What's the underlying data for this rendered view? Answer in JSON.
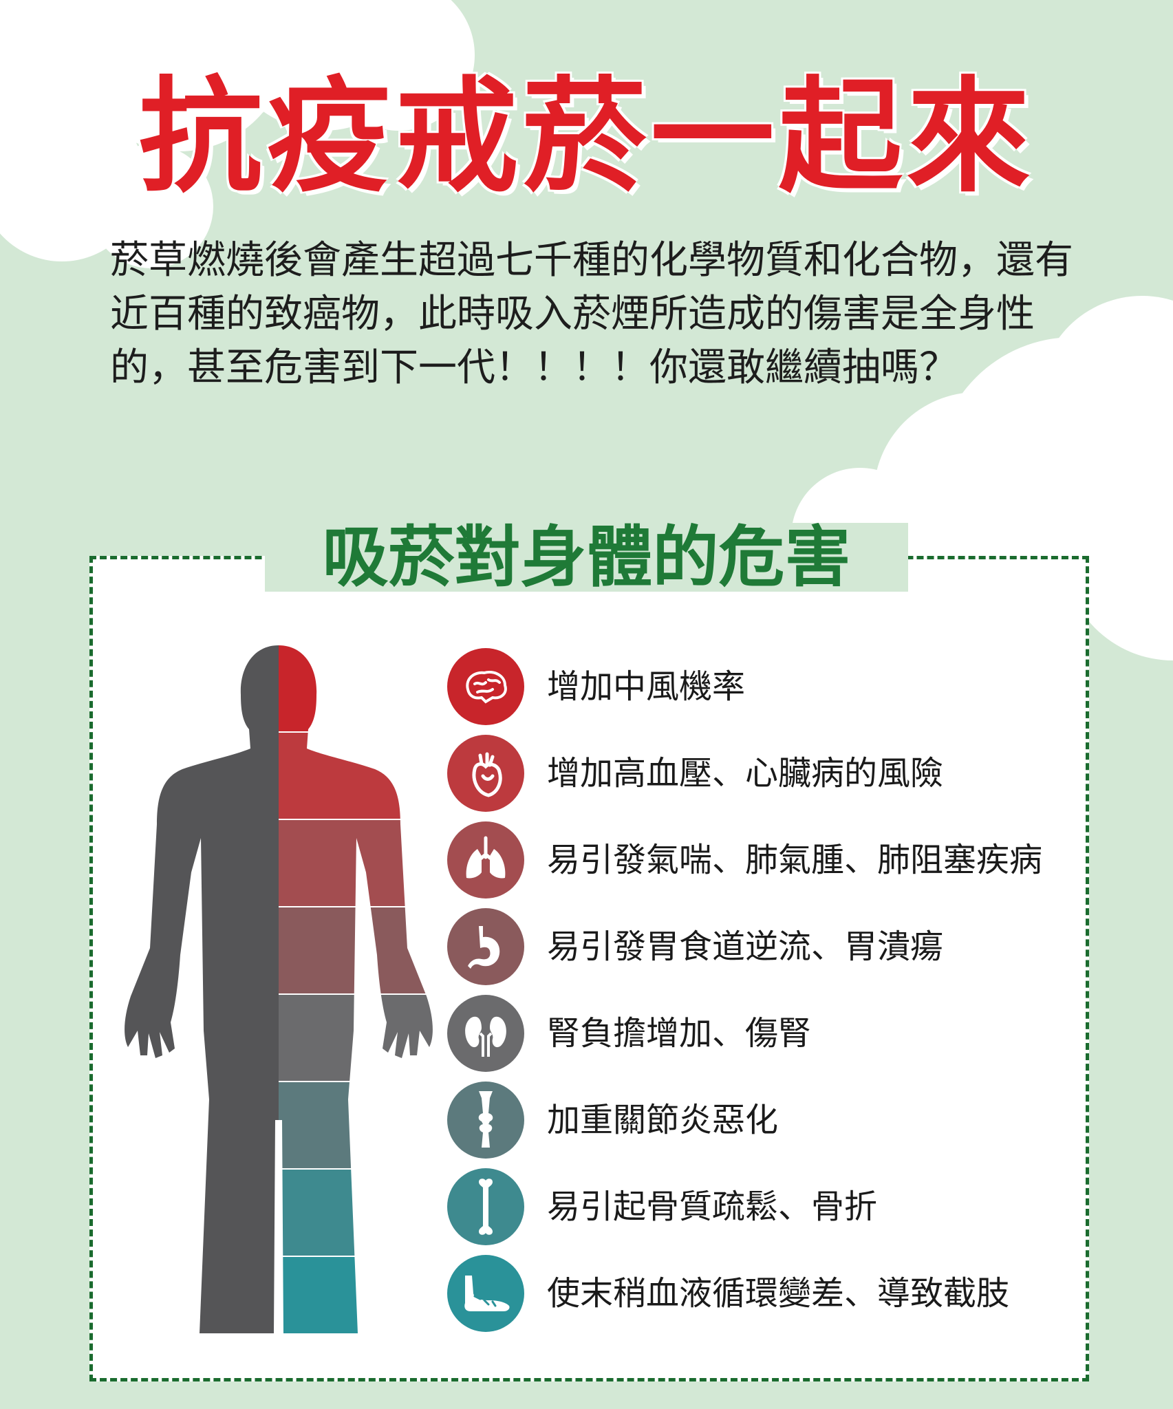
{
  "title": "抗疫戒菸一起來",
  "intro": "菸草燃燒後會產生超過七千種的化學物質和化合物，還有近百種的致癌物，此時吸入菸煙所造成的傷害是全身性的，甚至危害到下一代！！！！你還敢繼續抽嗎？",
  "panel_title": "吸菸對身體的危害",
  "colors": {
    "background": "#d3e8d5",
    "title_red": "#e01f26",
    "panel_green": "#1f7a37"
  },
  "effects": [
    {
      "text": "增加中風機率",
      "icon": "brain-icon",
      "color": "#c8252b"
    },
    {
      "text": "增加高血壓、心臟病的風險",
      "icon": "heart-icon",
      "color": "#bd3a3e"
    },
    {
      "text": "易引發氣喘、肺氣腫、肺阻塞疾病",
      "icon": "lungs-icon",
      "color": "#a34d50"
    },
    {
      "text": "易引發胃食道逆流、胃潰瘍",
      "icon": "stomach-icon",
      "color": "#8a5a5c"
    },
    {
      "text": "腎負擔增加、傷腎",
      "icon": "kidneys-icon",
      "color": "#6b6b6d"
    },
    {
      "text": "加重關節炎惡化",
      "icon": "joint-icon",
      "color": "#5c7a7d"
    },
    {
      "text": "易引起骨質疏鬆、骨折",
      "icon": "bone-icon",
      "color": "#3e8a8f"
    },
    {
      "text": "使末稍血液循環變差、導致截肢",
      "icon": "foot-icon",
      "color": "#2a9299"
    }
  ]
}
